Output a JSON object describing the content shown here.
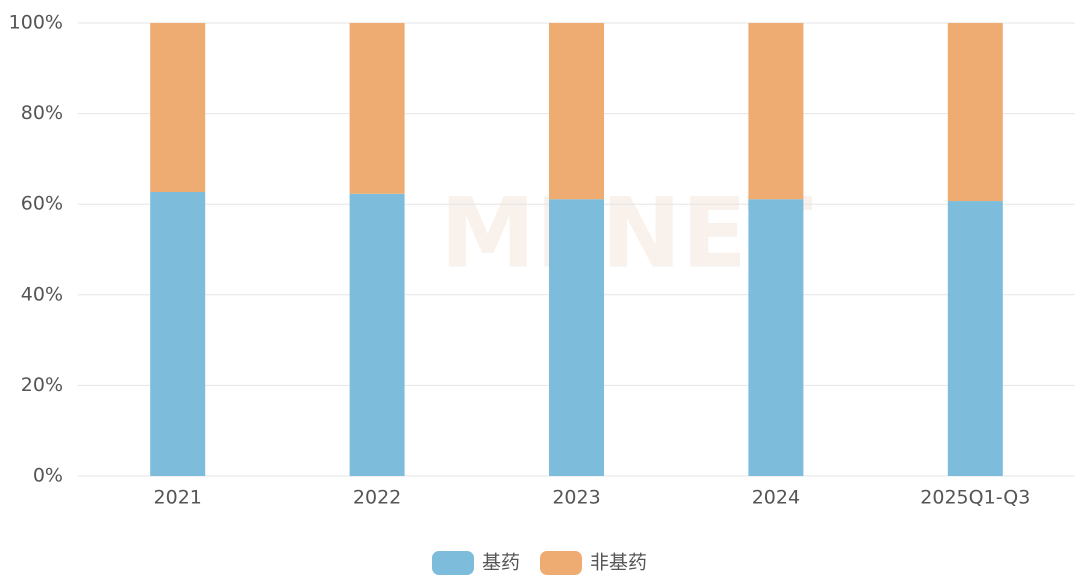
{
  "chart_data": {
    "type": "stacked_bar",
    "watermark": "MENET",
    "categories": [
      "2021",
      "2022",
      "2023",
      "2024",
      "2025Q1-Q3"
    ],
    "series": [
      {
        "name": "基药",
        "color": "#7dbddb",
        "values": [
          62.7,
          62.3,
          61.1,
          61.1,
          60.7
        ]
      },
      {
        "name": "非基药",
        "color": "#eeac72",
        "values": [
          37.3,
          37.7,
          38.9,
          38.9,
          39.3
        ]
      }
    ],
    "ylim": [
      0,
      100
    ],
    "yticks": [
      {
        "value": 0,
        "label": "0%"
      },
      {
        "value": 20,
        "label": "20%"
      },
      {
        "value": 40,
        "label": "40%"
      },
      {
        "value": 60,
        "label": "60%"
      },
      {
        "value": 80,
        "label": "80%"
      },
      {
        "value": 100,
        "label": "100%"
      }
    ],
    "grid": true,
    "legend": "bottom"
  }
}
